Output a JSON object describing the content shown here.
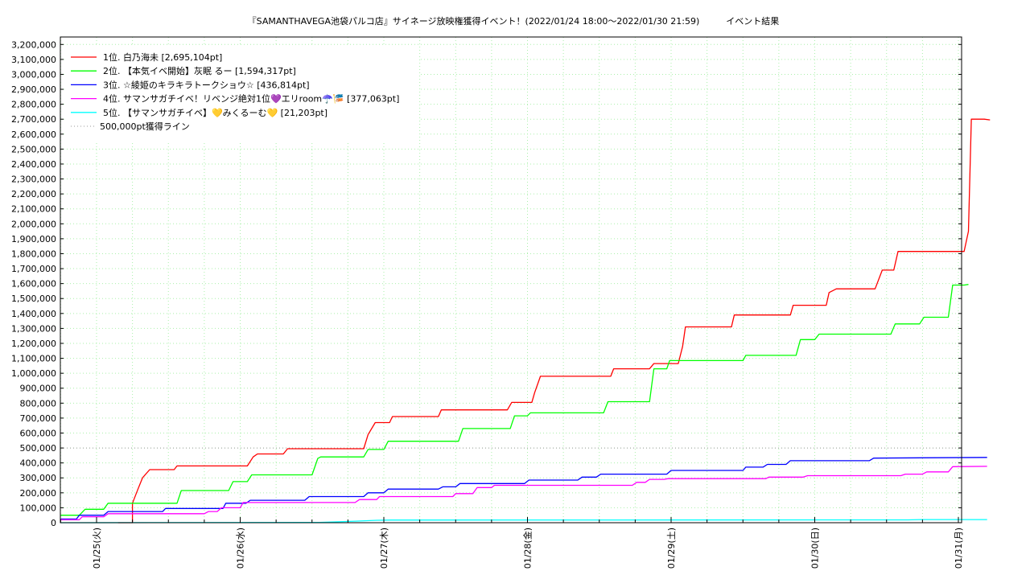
{
  "chart_data": {
    "type": "line",
    "title": "『SAMANTHAVEGA池袋パルコ店』サイネージ放映権獲得イベント！(2022/01/24 18:00〜2022/01/30 21:59)　　　イベント結果",
    "xlabel": "",
    "ylabel": "",
    "x_ticks": [
      "01/25(火)",
      "01/26(水)",
      "01/27(木)",
      "01/28(金)",
      "01/29(土)",
      "01/30(日)",
      "01/31(月)"
    ],
    "ylim": [
      0,
      3250000
    ],
    "y_ticks": [
      0,
      100000,
      200000,
      300000,
      400000,
      500000,
      600000,
      700000,
      800000,
      900000,
      1000000,
      1100000,
      1200000,
      1300000,
      1400000,
      1500000,
      1600000,
      1700000,
      1800000,
      1900000,
      2000000,
      2100000,
      2200000,
      2300000,
      2400000,
      2500000,
      2600000,
      2700000,
      2800000,
      2900000,
      3000000,
      3100000,
      3200000
    ],
    "y_tick_labels": [
      "0",
      "100,000",
      "200,000",
      "300,000",
      "400,000",
      "500,000",
      "600,000",
      "700,000",
      "800,000",
      "900,000",
      "1,000,000",
      "1,100,000",
      "1,200,000",
      "1,300,000",
      "1,400,000",
      "1,500,000",
      "1,600,000",
      "1,700,000",
      "1,800,000",
      "1,900,000",
      "2,000,000",
      "2,100,000",
      "2,200,000",
      "2,300,000",
      "2,400,000",
      "2,500,000",
      "2,600,000",
      "2,700,000",
      "2,800,000",
      "2,900,000",
      "3,000,000",
      "3,100,000",
      "3,200,000"
    ],
    "grid": true,
    "legend_position": "top-left",
    "threshold": {
      "value": 500000,
      "label": "500,000pt獲得ライン",
      "color": "#999999"
    },
    "series": [
      {
        "name": "1位. 白乃海未 [2,695,104pt]",
        "color": "#ff0000",
        "points": [
          [
            0.15,
            0
          ],
          [
            0.25,
            0
          ],
          [
            0.25,
            130000
          ],
          [
            0.29,
            230000
          ],
          [
            0.32,
            300000
          ],
          [
            0.37,
            355000
          ],
          [
            0.54,
            355000
          ],
          [
            0.56,
            380000
          ],
          [
            1.05,
            380000
          ],
          [
            1.09,
            440000
          ],
          [
            1.12,
            460000
          ],
          [
            1.3,
            460000
          ],
          [
            1.33,
            495000
          ],
          [
            1.86,
            495000
          ],
          [
            1.89,
            590000
          ],
          [
            1.94,
            670000
          ],
          [
            2.04,
            670000
          ],
          [
            2.06,
            710000
          ],
          [
            2.38,
            710000
          ],
          [
            2.4,
            755000
          ],
          [
            2.86,
            755000
          ],
          [
            2.89,
            805000
          ],
          [
            3.03,
            805000
          ],
          [
            3.05,
            870000
          ],
          [
            3.09,
            980000
          ],
          [
            3.58,
            980000
          ],
          [
            3.6,
            1030000
          ],
          [
            3.85,
            1030000
          ],
          [
            3.88,
            1065000
          ],
          [
            4.05,
            1065000
          ],
          [
            4.08,
            1180000
          ],
          [
            4.1,
            1310000
          ],
          [
            4.42,
            1310000
          ],
          [
            4.44,
            1390000
          ],
          [
            4.83,
            1390000
          ],
          [
            4.85,
            1455000
          ],
          [
            5.08,
            1455000
          ],
          [
            5.1,
            1540000
          ],
          [
            5.15,
            1565000
          ],
          [
            5.42,
            1565000
          ],
          [
            5.47,
            1690000
          ],
          [
            5.55,
            1690000
          ],
          [
            5.58,
            1815000
          ],
          [
            6.04,
            1815000
          ],
          [
            6.07,
            1950000
          ],
          [
            6.09,
            2700000
          ],
          [
            6.18,
            2700000
          ],
          [
            6.22,
            2695104
          ]
        ]
      },
      {
        "name": "2位. 【本気イベ開始】灰眠 るー [1,594,317pt]",
        "color": "#00ff00",
        "points": [
          [
            -0.25,
            50000
          ],
          [
            -0.12,
            50000
          ],
          [
            -0.08,
            90000
          ],
          [
            0.05,
            90000
          ],
          [
            0.08,
            130000
          ],
          [
            0.56,
            130000
          ],
          [
            0.59,
            215000
          ],
          [
            0.92,
            215000
          ],
          [
            0.95,
            275000
          ],
          [
            1.05,
            275000
          ],
          [
            1.08,
            320000
          ],
          [
            1.5,
            320000
          ],
          [
            1.54,
            430000
          ],
          [
            1.56,
            440000
          ],
          [
            1.86,
            440000
          ],
          [
            1.89,
            490000
          ],
          [
            2.0,
            490000
          ],
          [
            2.03,
            545000
          ],
          [
            2.52,
            545000
          ],
          [
            2.55,
            630000
          ],
          [
            2.88,
            630000
          ],
          [
            2.91,
            715000
          ],
          [
            3.0,
            715000
          ],
          [
            3.02,
            735000
          ],
          [
            3.53,
            735000
          ],
          [
            3.56,
            810000
          ],
          [
            3.85,
            810000
          ],
          [
            3.88,
            1030000
          ],
          [
            3.97,
            1030000
          ],
          [
            3.99,
            1085000
          ],
          [
            4.5,
            1085000
          ],
          [
            4.52,
            1120000
          ],
          [
            4.87,
            1120000
          ],
          [
            4.9,
            1225000
          ],
          [
            5.0,
            1225000
          ],
          [
            5.03,
            1262000
          ],
          [
            5.53,
            1262000
          ],
          [
            5.56,
            1330000
          ],
          [
            5.73,
            1330000
          ],
          [
            5.76,
            1375000
          ],
          [
            5.93,
            1375000
          ],
          [
            5.96,
            1590000
          ],
          [
            6.04,
            1590000
          ],
          [
            6.07,
            1594317
          ]
        ]
      },
      {
        "name": "3位. ☆綾姫のキラキラトークショウ☆ [436,814pt]",
        "color": "#0000ff",
        "points": [
          [
            -0.25,
            25000
          ],
          [
            -0.14,
            25000
          ],
          [
            -0.12,
            50000
          ],
          [
            0.05,
            50000
          ],
          [
            0.08,
            75000
          ],
          [
            0.46,
            75000
          ],
          [
            0.48,
            95000
          ],
          [
            0.88,
            95000
          ],
          [
            0.9,
            130000
          ],
          [
            1.04,
            130000
          ],
          [
            1.07,
            150000
          ],
          [
            1.45,
            150000
          ],
          [
            1.48,
            175000
          ],
          [
            1.86,
            175000
          ],
          [
            1.89,
            200000
          ],
          [
            2.0,
            200000
          ],
          [
            2.03,
            225000
          ],
          [
            2.38,
            225000
          ],
          [
            2.41,
            240000
          ],
          [
            2.5,
            240000
          ],
          [
            2.53,
            262000
          ],
          [
            2.98,
            262000
          ],
          [
            3.01,
            285000
          ],
          [
            3.35,
            285000
          ],
          [
            3.38,
            305000
          ],
          [
            3.48,
            305000
          ],
          [
            3.51,
            325000
          ],
          [
            3.97,
            325000
          ],
          [
            4.0,
            350000
          ],
          [
            4.5,
            350000
          ],
          [
            4.52,
            372000
          ],
          [
            4.64,
            372000
          ],
          [
            4.67,
            390000
          ],
          [
            4.8,
            390000
          ],
          [
            4.83,
            415000
          ],
          [
            5.38,
            415000
          ],
          [
            5.41,
            432000
          ],
          [
            6.2,
            436814
          ]
        ]
      },
      {
        "name": "4位. サマンサガチイベ！リベンジ絶対1位💜エリroom☂️🎏 [377,063pt]",
        "color": "#ff00ff",
        "points": [
          [
            -0.25,
            20000
          ],
          [
            -0.12,
            20000
          ],
          [
            -0.1,
            40000
          ],
          [
            0.05,
            40000
          ],
          [
            0.08,
            60000
          ],
          [
            0.75,
            60000
          ],
          [
            0.78,
            75000
          ],
          [
            0.84,
            75000
          ],
          [
            0.87,
            100000
          ],
          [
            1.0,
            100000
          ],
          [
            1.02,
            135000
          ],
          [
            1.8,
            135000
          ],
          [
            1.83,
            155000
          ],
          [
            1.95,
            155000
          ],
          [
            1.97,
            175000
          ],
          [
            2.48,
            175000
          ],
          [
            2.5,
            195000
          ],
          [
            2.62,
            195000
          ],
          [
            2.65,
            235000
          ],
          [
            2.75,
            235000
          ],
          [
            2.77,
            250000
          ],
          [
            3.73,
            250000
          ],
          [
            3.76,
            270000
          ],
          [
            3.82,
            270000
          ],
          [
            3.85,
            290000
          ],
          [
            3.95,
            290000
          ],
          [
            3.98,
            295000
          ],
          [
            4.66,
            295000
          ],
          [
            4.68,
            305000
          ],
          [
            4.92,
            305000
          ],
          [
            4.95,
            315000
          ],
          [
            5.6,
            315000
          ],
          [
            5.63,
            325000
          ],
          [
            5.75,
            325000
          ],
          [
            5.78,
            340000
          ],
          [
            5.93,
            340000
          ],
          [
            5.96,
            375000
          ],
          [
            6.2,
            377063
          ]
        ]
      },
      {
        "name": "5位. 【サマンサガチイベ】💛みくるーむ💛 [21,203pt]",
        "color": "#00ffff",
        "points": [
          [
            -0.25,
            0
          ],
          [
            1.55,
            2000
          ],
          [
            1.8,
            10000
          ],
          [
            1.95,
            16000
          ],
          [
            2.05,
            18000
          ],
          [
            5.65,
            19000
          ],
          [
            5.75,
            21000
          ],
          [
            6.2,
            21203
          ]
        ]
      }
    ]
  }
}
